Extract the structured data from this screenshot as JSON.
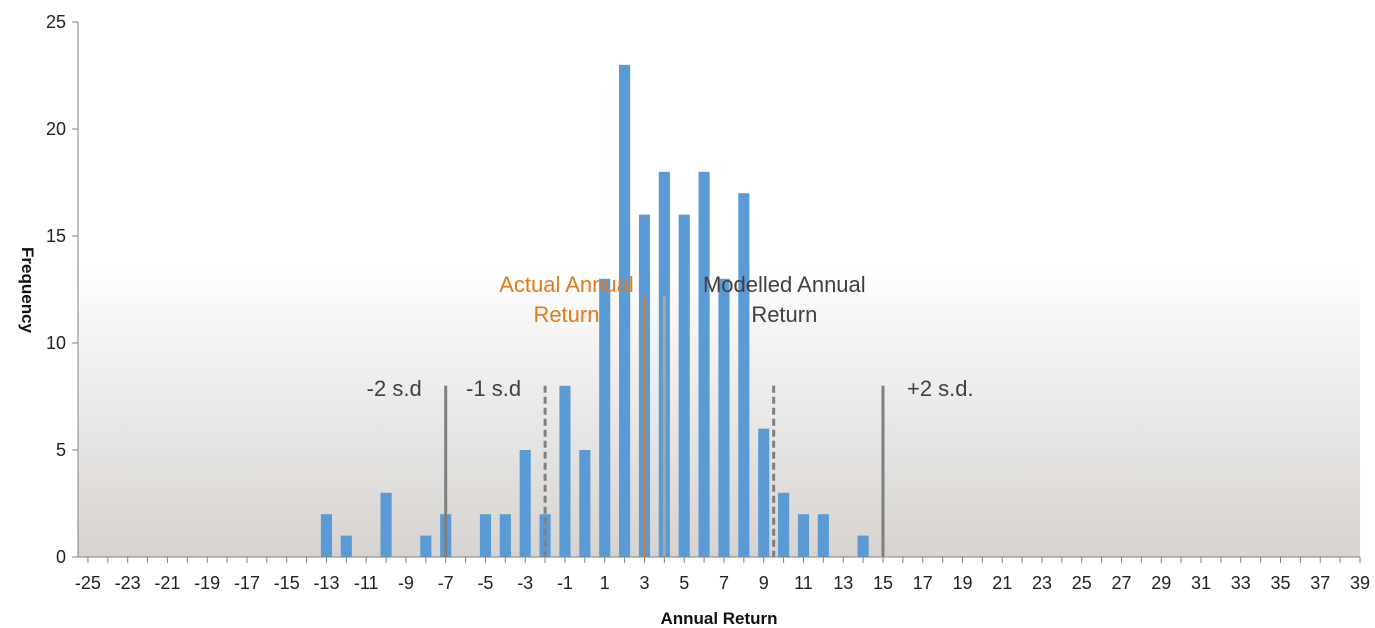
{
  "chart_data": {
    "type": "bar",
    "title": "",
    "xlabel": "Annual Return",
    "ylabel": "Frequency",
    "x": [
      -25,
      -24,
      -23,
      -22,
      -21,
      -20,
      -19,
      -18,
      -17,
      -16,
      -15,
      -14,
      -13,
      -12,
      -11,
      -10,
      -9,
      -8,
      -7,
      -6,
      -5,
      -4,
      -3,
      -2,
      -1,
      0,
      1,
      2,
      3,
      4,
      5,
      6,
      7,
      8,
      9,
      10,
      11,
      12,
      13,
      14,
      15,
      16,
      17,
      18,
      19,
      20,
      21,
      22,
      23,
      24,
      25,
      26,
      27,
      28,
      29,
      30,
      31,
      32,
      33,
      34,
      35,
      36,
      37,
      38,
      39
    ],
    "values": [
      0,
      0,
      0,
      0,
      0,
      0,
      0,
      0,
      0,
      0,
      0,
      0,
      2,
      1,
      0,
      3,
      0,
      1,
      2,
      0,
      2,
      2,
      5,
      2,
      8,
      5,
      13,
      23,
      16,
      18,
      16,
      18,
      13,
      17,
      6,
      3,
      2,
      2,
      0,
      1,
      0,
      0,
      0,
      0,
      0,
      0,
      0,
      0,
      0,
      0,
      0,
      0,
      0,
      0,
      0,
      0,
      0,
      0,
      0,
      0,
      0,
      0,
      0,
      0,
      0
    ],
    "x_tick_labels": [
      "-25",
      "-23",
      "-21",
      "-19",
      "-17",
      "-15",
      "-13",
      "-11",
      "-9",
      "-7",
      "-5",
      "-3",
      "-1",
      "1",
      "3",
      "5",
      "7",
      "9",
      "11",
      "13",
      "15",
      "17",
      "19",
      "21",
      "23",
      "25",
      "27",
      "29",
      "31",
      "33",
      "35",
      "37",
      "39"
    ],
    "y_ticks": [
      "0",
      "5",
      "10",
      "15",
      "20",
      "25"
    ],
    "ylim": [
      0,
      25
    ],
    "xlim": [
      -25,
      39
    ],
    "grid": false,
    "bar_color": "#5b9bd5",
    "annotations": [
      {
        "text": "-2 s.d",
        "x": -7,
        "style": "solid",
        "color": "#7f7f7f"
      },
      {
        "text": "-1 s.d",
        "x": -2,
        "style": "dashed",
        "color": "#7f7f7f"
      },
      {
        "text": "Actual Annual Return",
        "lines": [
          "Actual Annual",
          "Return"
        ],
        "x": 3,
        "style": "solid",
        "color": "#e07b1c"
      },
      {
        "text": "Modelled Annual Return",
        "lines": [
          "Modelled Annual",
          "Return"
        ],
        "x": 4,
        "style": "solid",
        "color": "#a6a6a6"
      },
      {
        "text": "",
        "x": 9.5,
        "style": "dashed",
        "color": "#7f7f7f"
      },
      {
        "text": "+2 s.d.",
        "x": 15,
        "style": "solid",
        "color": "#7f7f7f"
      }
    ]
  }
}
